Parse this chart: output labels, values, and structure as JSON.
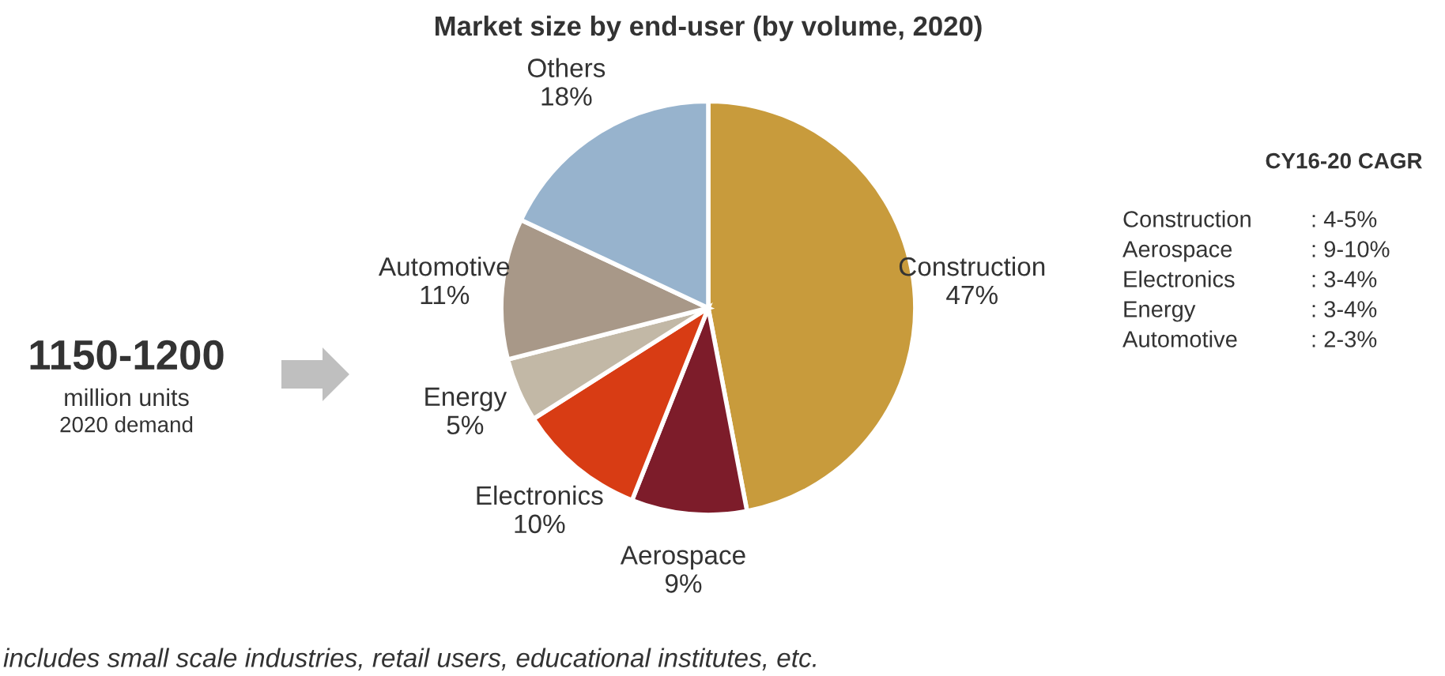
{
  "chart_data": {
    "type": "pie",
    "title": "Market size by end-user (by volume, 2020)",
    "categories": [
      "Construction",
      "Aerospace",
      "Electronics",
      "Energy",
      "Automotive",
      "Others"
    ],
    "values": [
      47,
      9,
      10,
      5,
      11,
      18
    ],
    "value_labels": [
      "47%",
      "9%",
      "10%",
      "5%",
      "11%",
      "18%"
    ],
    "colors": [
      "#c89b3c",
      "#7d1c2a",
      "#d83c14",
      "#c2b8a6",
      "#a89888",
      "#97b3cd"
    ],
    "legend": false,
    "annotations": [
      "1150-1200",
      "million units",
      "2020 demand",
      "CY16-20 CAGR",
      "Construction",
      "Aerospace",
      "Electronics",
      "Energy",
      "Automotive",
      ": 4-5%",
      ": 9-10%",
      ": 3-4%",
      ": 3-4%",
      ": 2-3%",
      "includes small scale industries, retail users, educational institutes, etc."
    ]
  }
}
